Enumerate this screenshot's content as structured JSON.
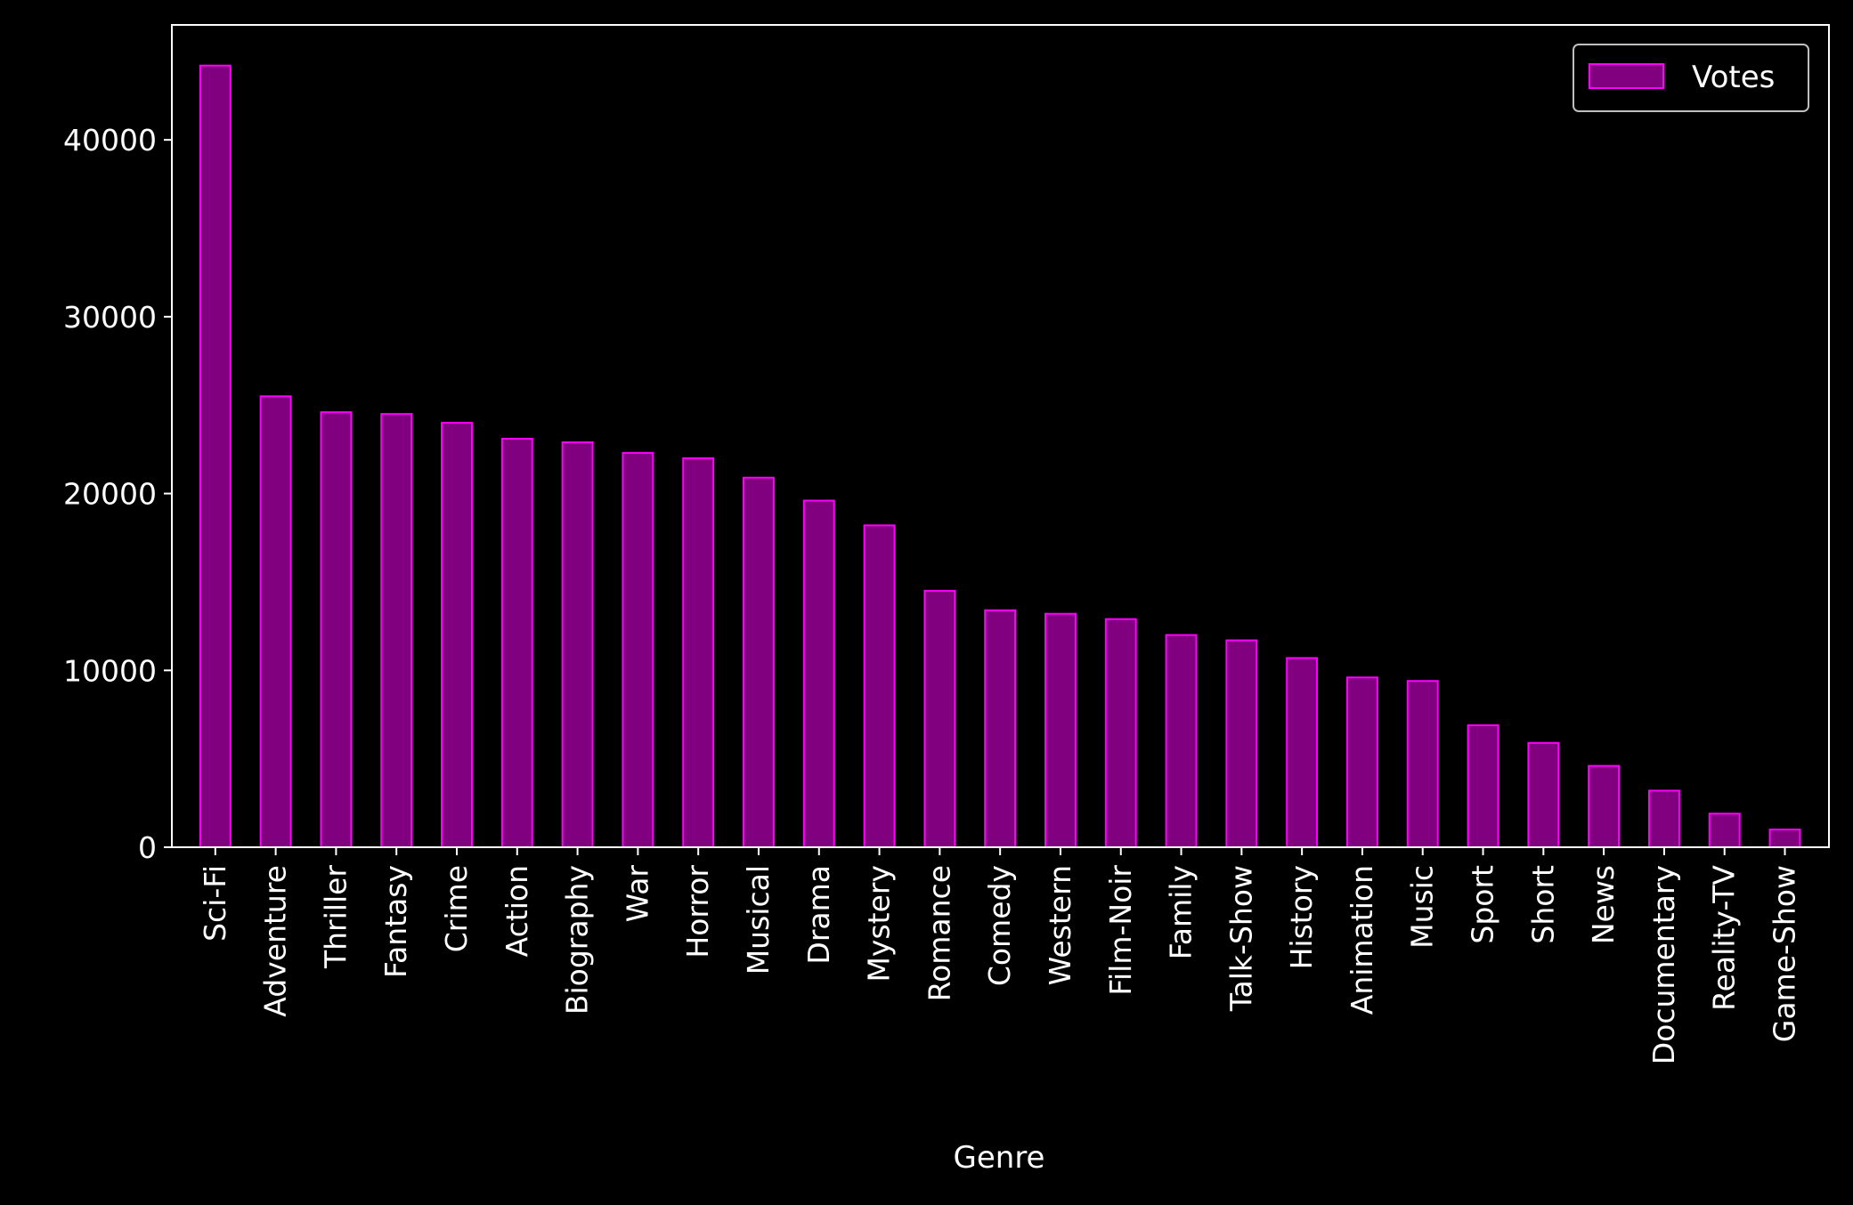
{
  "chart_data": {
    "type": "bar",
    "xlabel": "Genre",
    "ylabel": "",
    "ylim": [
      0,
      46500
    ],
    "yticks": [
      0,
      10000,
      20000,
      30000,
      40000
    ],
    "grid": false,
    "legend_position": "top-right",
    "categories": [
      "Sci-Fi",
      "Adventure",
      "Thriller",
      "Fantasy",
      "Crime",
      "Action",
      "Biography",
      "War",
      "Horror",
      "Musical",
      "Drama",
      "Mystery",
      "Romance",
      "Comedy",
      "Western",
      "Film-Noir",
      "Family",
      "Talk-Show",
      "History",
      "Animation",
      "Music",
      "Sport",
      "Short",
      "News",
      "Documentary",
      "Reality-TV",
      "Game-Show"
    ],
    "series": [
      {
        "name": "Votes",
        "color": "#800080",
        "edge_color": "#ff00ff",
        "values": [
          44200,
          25500,
          24600,
          24500,
          24000,
          23100,
          22900,
          22300,
          22000,
          20900,
          19600,
          18200,
          14500,
          13400,
          13200,
          12900,
          12000,
          11700,
          10700,
          9600,
          9400,
          6900,
          5900,
          4600,
          3200,
          1900,
          1000
        ]
      }
    ]
  }
}
